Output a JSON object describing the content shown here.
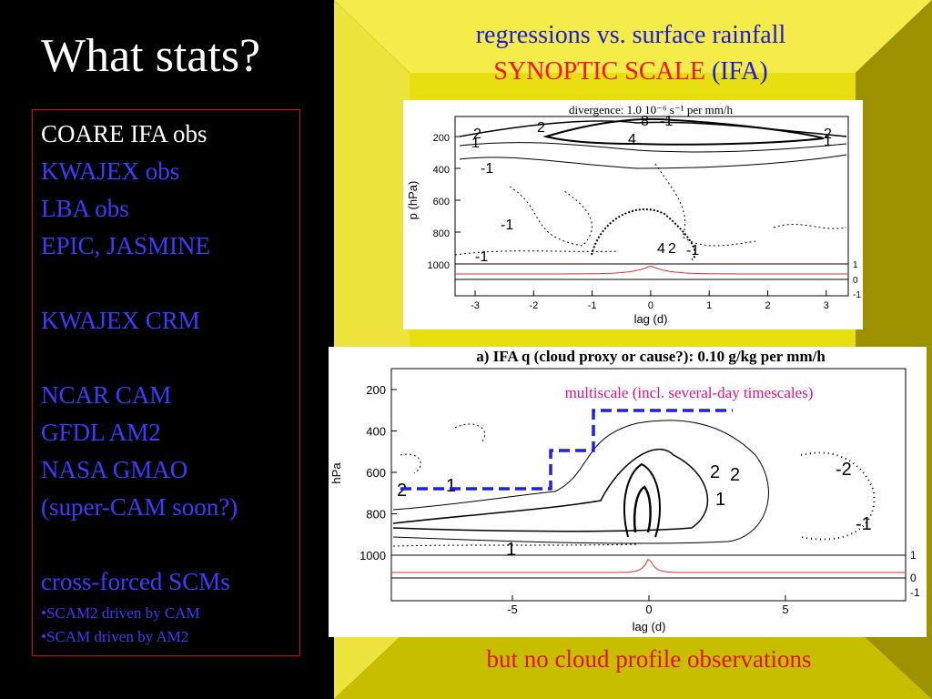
{
  "slide": {
    "title": "What stats?",
    "list": [
      "COARE  IFA obs",
      "KWAJEX obs",
      "LBA obs",
      "EPIC, JASMINE",
      "KWAJEX CRM",
      "NCAR CAM",
      "GFDL AM2",
      "NASA GMAO",
      "(super-CAM soon?)",
      "cross-forced SCMs",
      "•SCAM2 driven by CAM",
      "•SCAM driven by AM2"
    ],
    "heading": {
      "line1": "regressions vs. surface rainfall",
      "line2": [
        "SYNOPTIC SCALE",
        "(IFA)"
      ]
    },
    "footer": "but no cloud profile observations",
    "fig1": {
      "title": "divergence: 1.0 10⁻⁶ s⁻¹ per mm/h",
      "ylabel": "p (hPa)",
      "xlabel": "lag (d)",
      "yticks": [
        "200",
        "400",
        "600",
        "800",
        "1000"
      ],
      "xticks": [
        "-3",
        "-2",
        "-1",
        "0",
        "1",
        "2",
        "3"
      ],
      "right_ticks": [
        "1",
        "0",
        "-1"
      ],
      "contour_labels": [
        "2",
        "1",
        "2",
        "8",
        "-1",
        "4",
        "2",
        "1",
        "-1",
        "-1",
        "4",
        "2",
        "-1",
        "-1"
      ]
    },
    "fig2": {
      "title": "a) IFA q (cloud proxy or cause?): 0.10 g/kg per mm/h",
      "ylabel": "hPa",
      "xlabel": "lag (d)",
      "yticks": [
        "200",
        "400",
        "600",
        "800",
        "1000"
      ],
      "xticks": [
        "-5",
        "0",
        "5"
      ],
      "right_ticks": [
        "1",
        "0",
        "-1"
      ],
      "annotation": "multiscale (incl. several-day timescales)",
      "contour_labels": [
        "2",
        "1",
        "1",
        "2",
        "-2",
        "-1",
        "1",
        "2"
      ]
    }
  }
}
